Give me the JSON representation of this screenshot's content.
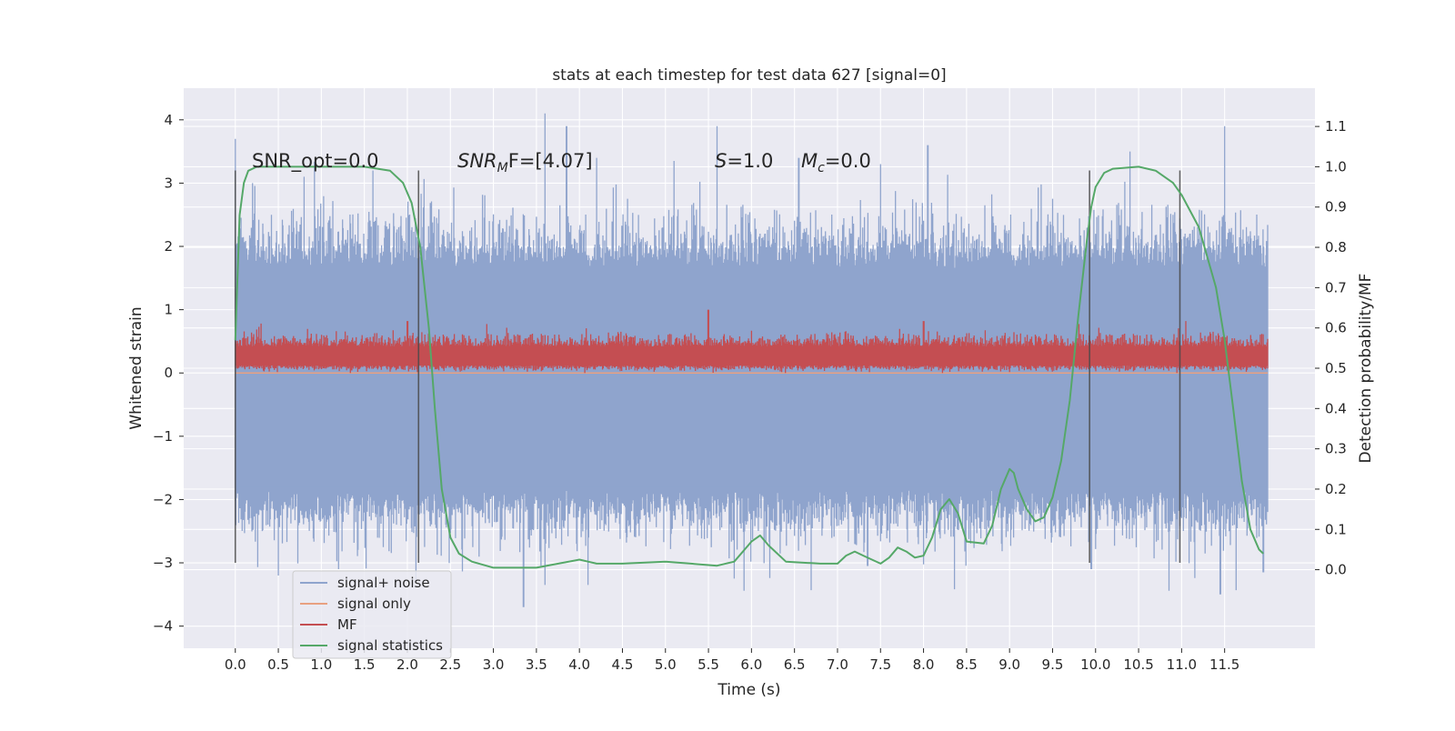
{
  "chart_data": {
    "type": "line",
    "title": "stats at each timestep for test data 627 [signal=0]",
    "xlabel": "Time (s)",
    "ylabel": "Whitened strain",
    "ylabel_right": "Detection probability/MF",
    "xlim": [
      -0.6,
      12.55
    ],
    "ylim": [
      -4.35,
      4.5
    ],
    "ylim_right": [
      -0.195,
      1.195
    ],
    "x_ticks": [
      "0.0",
      "0.5",
      "1.0",
      "1.5",
      "2.0",
      "2.5",
      "3.0",
      "3.5",
      "4.0",
      "4.5",
      "5.0",
      "5.5",
      "6.0",
      "6.5",
      "7.0",
      "7.5",
      "8.0",
      "8.5",
      "9.0",
      "9.5",
      "10.0",
      "10.5",
      "11.0",
      "11.5"
    ],
    "y_ticks_left": [
      "4",
      "3",
      "2",
      "1",
      "0",
      "−1",
      "−2",
      "−3",
      "−4"
    ],
    "y_ticks_right": [
      "1.1",
      "1.0",
      "0.9",
      "0.8",
      "0.7",
      "0.6",
      "0.5",
      "0.4",
      "0.3",
      "0.2",
      "0.1",
      "0.0"
    ],
    "grid": true,
    "legend_position": "lower-left",
    "annotations": {
      "snr_opt": "SNR_opt=0.0",
      "snr_mf_main": "SNR",
      "snr_mf_sub": "M",
      "snr_mf_tail": "F=[4.07]",
      "s_main": "S",
      "s_tail": "=1.0",
      "mc_main": "M",
      "mc_sub": "c",
      "mc_tail": "=0.0"
    },
    "window_markers": [
      0.0,
      2.13,
      9.93,
      10.98
    ],
    "series": [
      {
        "name": "signal+ noise",
        "color": "#8fa4cd",
        "axis": "left",
        "x_range": [
          0.0,
          12.0
        ],
        "band_approx": [
          -2.6,
          2.4
        ],
        "spikes_up": [
          [
            0.0,
            3.7
          ],
          [
            0.2,
            3.0
          ],
          [
            0.8,
            3.1
          ],
          [
            1.6,
            3.2
          ],
          [
            3.6,
            4.1
          ],
          [
            3.85,
            3.9
          ],
          [
            4.2,
            3.4
          ],
          [
            5.1,
            3.35
          ],
          [
            5.6,
            3.9
          ],
          [
            6.55,
            3.4
          ],
          [
            7.5,
            3.3
          ],
          [
            8.05,
            3.6
          ],
          [
            10.4,
            3.5
          ],
          [
            11.5,
            3.9
          ]
        ],
        "spikes_down": [
          [
            0.5,
            -3.2
          ],
          [
            1.2,
            -3.1
          ],
          [
            2.1,
            -3.3
          ],
          [
            3.35,
            -3.7
          ],
          [
            3.6,
            -3.35
          ],
          [
            4.1,
            -3.35
          ],
          [
            5.8,
            -3.25
          ],
          [
            7.35,
            -3.05
          ],
          [
            9.95,
            -3.1
          ],
          [
            11.45,
            -3.5
          ],
          [
            11.95,
            -3.15
          ]
        ]
      },
      {
        "name": "signal only",
        "color": "#e8a181",
        "axis": "left",
        "x": [
          0.0,
          12.0
        ],
        "y": [
          0.0,
          0.0
        ]
      },
      {
        "name": "MF",
        "color": "#c44e52",
        "axis": "left",
        "x_range": [
          0.0,
          12.0
        ],
        "band_approx": [
          0.0,
          0.72
        ],
        "peaks": [
          [
            0.3,
            0.78
          ],
          [
            2.0,
            0.82
          ],
          [
            5.5,
            1.0
          ],
          [
            8.0,
            0.82
          ],
          [
            11.05,
            0.82
          ]
        ]
      },
      {
        "name": "signal statistics",
        "color": "#55a868",
        "axis": "right",
        "x": [
          0.0,
          0.05,
          0.1,
          0.15,
          0.25,
          0.5,
          1.0,
          1.5,
          1.8,
          1.95,
          2.05,
          2.15,
          2.25,
          2.32,
          2.4,
          2.5,
          2.6,
          2.75,
          3.0,
          3.5,
          4.0,
          4.1,
          4.2,
          4.5,
          5.0,
          5.6,
          5.8,
          6.0,
          6.1,
          6.2,
          6.4,
          6.8,
          7.0,
          7.1,
          7.2,
          7.3,
          7.5,
          7.6,
          7.7,
          7.8,
          7.9,
          8.0,
          8.1,
          8.2,
          8.3,
          8.4,
          8.5,
          8.7,
          8.8,
          8.9,
          9.0,
          9.05,
          9.1,
          9.2,
          9.3,
          9.4,
          9.5,
          9.6,
          9.7,
          9.8,
          9.9,
          9.95,
          10.0,
          10.1,
          10.2,
          10.5,
          10.7,
          10.9,
          11.0,
          11.2,
          11.4,
          11.5,
          11.6,
          11.7,
          11.8,
          11.9,
          11.95
        ],
        "y": [
          0.57,
          0.88,
          0.96,
          0.99,
          1.0,
          1.0,
          1.0,
          1.0,
          0.99,
          0.96,
          0.91,
          0.8,
          0.6,
          0.4,
          0.2,
          0.08,
          0.04,
          0.02,
          0.005,
          0.005,
          0.025,
          0.02,
          0.015,
          0.015,
          0.02,
          0.01,
          0.02,
          0.07,
          0.085,
          0.06,
          0.02,
          0.015,
          0.015,
          0.035,
          0.045,
          0.035,
          0.015,
          0.03,
          0.055,
          0.045,
          0.03,
          0.035,
          0.08,
          0.15,
          0.175,
          0.14,
          0.07,
          0.065,
          0.11,
          0.2,
          0.25,
          0.24,
          0.2,
          0.15,
          0.12,
          0.13,
          0.18,
          0.27,
          0.42,
          0.63,
          0.82,
          0.9,
          0.95,
          0.985,
          0.995,
          1.0,
          0.99,
          0.96,
          0.93,
          0.85,
          0.7,
          0.57,
          0.4,
          0.22,
          0.1,
          0.05,
          0.04
        ]
      }
    ]
  }
}
